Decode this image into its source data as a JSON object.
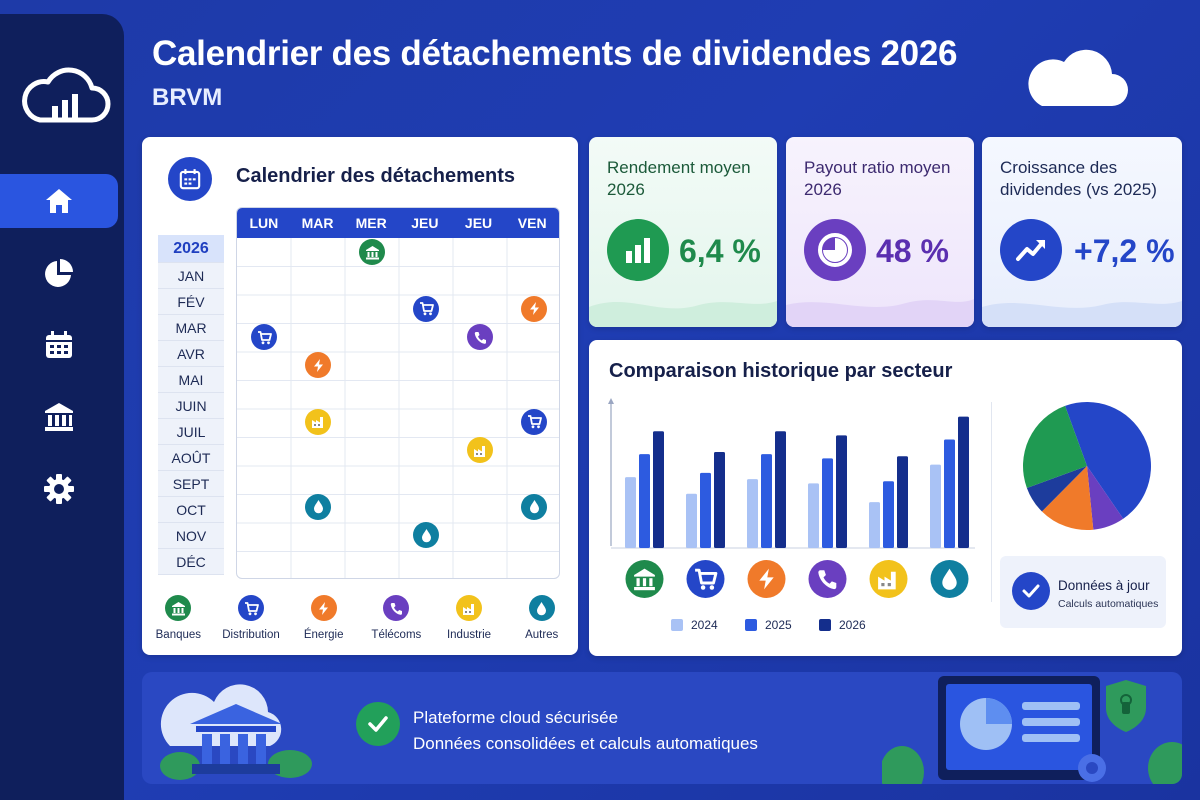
{
  "header": {
    "title": "Calendrier des détachements de dividendes 2026",
    "subtitle": "BRVM"
  },
  "sidebar": {
    "items": [
      {
        "name": "home",
        "icon": "home-icon",
        "active": true
      },
      {
        "name": "portfolio",
        "icon": "pie-chart-icon",
        "active": false
      },
      {
        "name": "calendar",
        "icon": "calendar-icon",
        "active": false
      },
      {
        "name": "bank",
        "icon": "bank-icon",
        "active": false
      },
      {
        "name": "settings",
        "icon": "gear-icon",
        "active": false
      }
    ]
  },
  "calendar": {
    "title": "Calendrier des détachements",
    "year": "2026",
    "months": [
      "JAN",
      "FÉV",
      "MAR",
      "AVR",
      "MAI",
      "JUIN",
      "JUIL",
      "AOÛT",
      "SEPT",
      "OCT",
      "NOV",
      "DÉC"
    ],
    "days": [
      "LUN",
      "MAR",
      "MER",
      "JEU",
      "JEU",
      "VEN"
    ],
    "events": [
      {
        "month": "JAN",
        "day_index": 2,
        "sector": "Banques"
      },
      {
        "month": "MAR",
        "day_index": 3,
        "sector": "Distribution"
      },
      {
        "month": "MAR",
        "day_index": 5,
        "sector": "Énergie"
      },
      {
        "month": "AVR",
        "day_index": 0,
        "sector": "Distribution"
      },
      {
        "month": "AVR",
        "day_index": 4,
        "sector": "Télécoms"
      },
      {
        "month": "MAI",
        "day_index": 1,
        "sector": "Énergie"
      },
      {
        "month": "JUIL",
        "day_index": 1,
        "sector": "Industrie"
      },
      {
        "month": "JUIL",
        "day_index": 5,
        "sector": "Distribution"
      },
      {
        "month": "AOÛT",
        "day_index": 4,
        "sector": "Industrie"
      },
      {
        "month": "OCT",
        "day_index": 1,
        "sector": "Autres"
      },
      {
        "month": "OCT",
        "day_index": 5,
        "sector": "Autres"
      },
      {
        "month": "NOV",
        "day_index": 3,
        "sector": "Autres"
      }
    ],
    "legend": [
      {
        "label": "Banques",
        "icon": "bank-icon",
        "color": "#1f8a4c"
      },
      {
        "label": "Distribution",
        "icon": "cart-icon",
        "color": "#2446c8"
      },
      {
        "label": "Énergie",
        "icon": "lightning-icon",
        "color": "#f07a2a"
      },
      {
        "label": "Télécoms",
        "icon": "phone-icon",
        "color": "#6a3fc0"
      },
      {
        "label": "Industrie",
        "icon": "factory-icon",
        "color": "#f2c21b"
      },
      {
        "label": "Autres",
        "icon": "drop-icon",
        "color": "#0f7fa0"
      }
    ]
  },
  "kpis": [
    {
      "label": "Rendement moyen 2026",
      "value": "6,4 %",
      "icon": "bar-chart-icon",
      "color": "#1f9a52"
    },
    {
      "label": "Payout ratio moyen 2026",
      "value": "48 %",
      "icon": "pie-chart-icon",
      "color": "#6a3fc0"
    },
    {
      "label": "Croissance des dividendes (vs 2025)",
      "value": "+7,2 %",
      "icon": "trend-up-icon",
      "color": "#2446c8"
    }
  ],
  "comparison": {
    "title": "Comparaison historique par secteur",
    "status_title": "Données à jour",
    "status_sub": "Calculs automatiques"
  },
  "chart_data": {
    "type": "bar",
    "categories": [
      "Banques",
      "Distribution",
      "Énergie",
      "Télécoms",
      "Industrie",
      "Autres"
    ],
    "series": [
      {
        "name": "2024",
        "values": [
          3.4,
          2.6,
          3.3,
          3.1,
          2.2,
          4.0
        ],
        "color": "#a9c2f5"
      },
      {
        "name": "2025",
        "values": [
          4.5,
          3.6,
          4.5,
          4.3,
          3.2,
          5.2
        ],
        "color": "#2d5be0"
      },
      {
        "name": "2026",
        "values": [
          5.6,
          4.6,
          5.6,
          5.4,
          4.4,
          6.3
        ],
        "color": "#142e8c"
      }
    ],
    "ylim": [
      0,
      7
    ],
    "pie": {
      "type": "pie",
      "slices": [
        {
          "value": 46,
          "color": "#2446c8"
        },
        {
          "value": 8,
          "color": "#6a3fc0"
        },
        {
          "value": 14,
          "color": "#f07a2a"
        },
        {
          "value": 7,
          "color": "#1d3c9c"
        },
        {
          "value": 25,
          "color": "#1f9a52"
        }
      ]
    }
  },
  "banner": {
    "line1": "Plateforme cloud sécurisée",
    "line2": "Données consolidées et calculs automatiques"
  }
}
